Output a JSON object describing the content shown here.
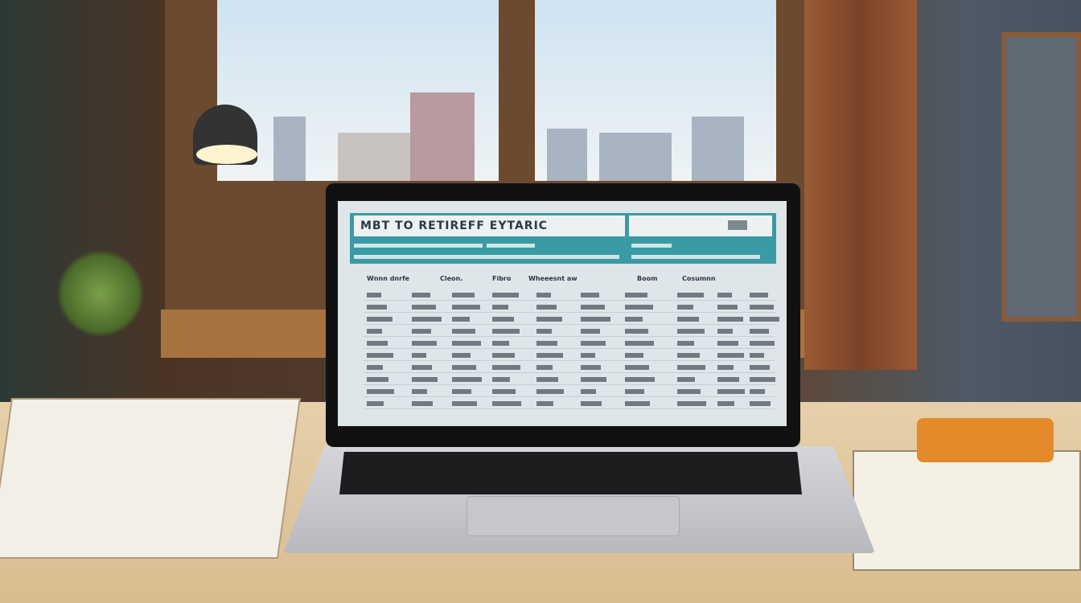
{
  "screen": {
    "title": "MBT TO RETIREFF EYTARIC",
    "column_headers": [
      "Wnnn dnrfe",
      "Cleon.",
      "Fibro",
      "Wheeesnt aw",
      "Boom",
      "Cosumnn"
    ]
  },
  "colors": {
    "header": "#3a9aa5",
    "desk": "#e6cfaa",
    "bezel": "#111111"
  }
}
